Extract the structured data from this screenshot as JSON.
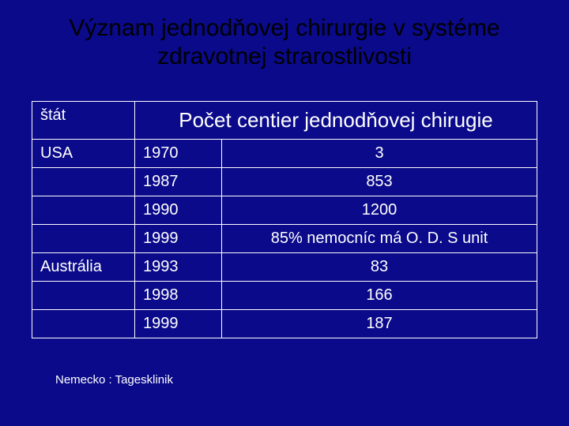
{
  "colors": {
    "background": "#0a0a8a",
    "title_text": "#000000",
    "cell_text": "#ffffff",
    "border": "#ffffff"
  },
  "title": "Význam jednodňovej chirurgie v systéme zdravotnej strarostlivosti",
  "table": {
    "headers": {
      "state": "štát",
      "count": "Počet centier jednodňovej chirugie"
    },
    "rows": [
      {
        "state": "USA",
        "year": "1970",
        "value": "3"
      },
      {
        "state": "",
        "year": "1987",
        "value": "853"
      },
      {
        "state": "",
        "year": "1990",
        "value": "1200"
      },
      {
        "state": "",
        "year": "1999",
        "value": "85% nemocníc má O. D. S unit"
      },
      {
        "state": "Austrália",
        "year": "1993",
        "value": "83"
      },
      {
        "state": "",
        "year": "1998",
        "value": "166"
      },
      {
        "state": "",
        "year": "1999",
        "value": "187"
      }
    ]
  },
  "footnote": "Nemecko : Tagesklinik"
}
